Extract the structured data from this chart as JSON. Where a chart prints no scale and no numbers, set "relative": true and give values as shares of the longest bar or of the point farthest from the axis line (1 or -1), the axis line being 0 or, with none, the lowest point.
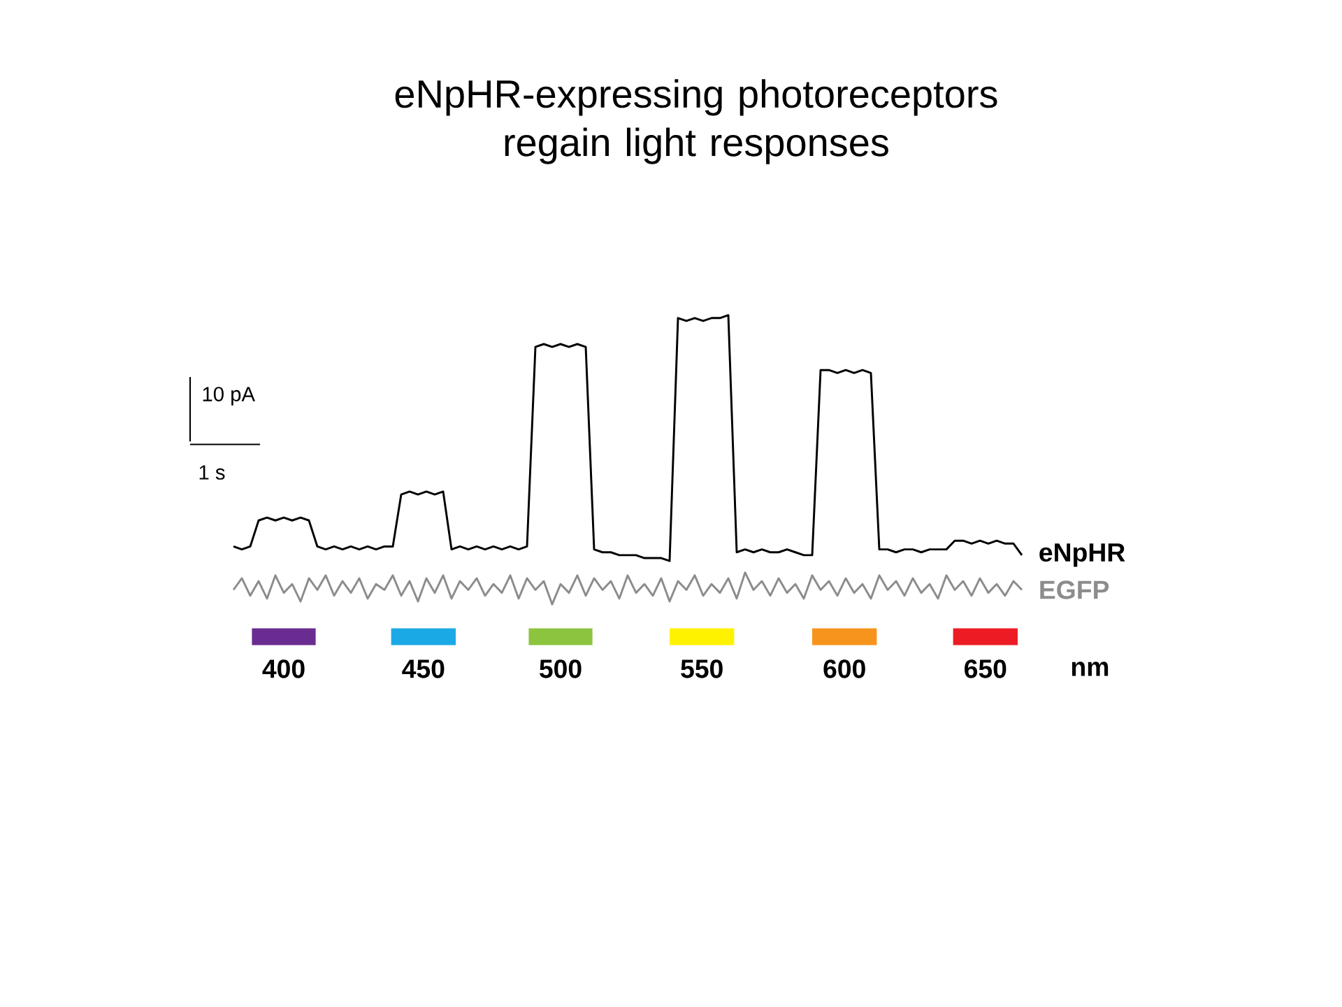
{
  "chart_data": {
    "type": "line",
    "title": "eNpHR-expressing photoreceptors regain light responses",
    "relative": true,
    "tick_labels": false,
    "categories": [
      null,
      null,
      null,
      null,
      null,
      null,
      null,
      null,
      null,
      null,
      null,
      null,
      null,
      null,
      null,
      null,
      null,
      null,
      null,
      null,
      null,
      null,
      null,
      null,
      null,
      null,
      null,
      null,
      null,
      null,
      null,
      null,
      null,
      null,
      null,
      null,
      null,
      null,
      null,
      null,
      null,
      null,
      null,
      null,
      null,
      null,
      null,
      null,
      null,
      null,
      null,
      null,
      null,
      null,
      null,
      null,
      null,
      null,
      null,
      null,
      null,
      null,
      null,
      null,
      null,
      null,
      null,
      null,
      null,
      null,
      null,
      null,
      null,
      null,
      null,
      null,
      null,
      null,
      null,
      null,
      null,
      null,
      null,
      null,
      null,
      null,
      null,
      null,
      null,
      null,
      null,
      null,
      null,
      null,
      null
    ],
    "series": [
      {
        "name": "eNpHR",
        "color": "#000000",
        "values": [
          0.2,
          0.19,
          0.2,
          0.29,
          0.3,
          0.29,
          0.3,
          0.29,
          0.3,
          0.29,
          0.2,
          0.19,
          0.2,
          0.19,
          0.2,
          0.19,
          0.2,
          0.19,
          0.2,
          0.2,
          0.38,
          0.39,
          0.38,
          0.39,
          0.38,
          0.39,
          0.19,
          0.2,
          0.19,
          0.2,
          0.19,
          0.2,
          0.19,
          0.2,
          0.19,
          0.2,
          0.89,
          0.9,
          0.89,
          0.9,
          0.89,
          0.9,
          0.89,
          0.19,
          0.18,
          0.18,
          0.17,
          0.17,
          0.17,
          0.16,
          0.16,
          0.16,
          0.15,
          0.99,
          0.98,
          0.99,
          0.98,
          0.99,
          0.99,
          1.0,
          0.18,
          0.19,
          0.18,
          0.19,
          0.18,
          0.18,
          0.19,
          0.18,
          0.17,
          0.17,
          0.81,
          0.81,
          0.8,
          0.81,
          0.8,
          0.81,
          0.8,
          0.19,
          0.19,
          0.18,
          0.19,
          0.19,
          0.18,
          0.19,
          0.19,
          0.19,
          0.22,
          0.22,
          0.21,
          0.22,
          0.21,
          0.22,
          0.21,
          0.21,
          0.17
        ]
      },
      {
        "name": "EGFP",
        "color": "#8c8c8c",
        "values": [
          0.05,
          0.09,
          0.03,
          0.08,
          0.02,
          0.1,
          0.04,
          0.07,
          0.01,
          0.09,
          0.05,
          0.1,
          0.03,
          0.08,
          0.04,
          0.09,
          0.02,
          0.07,
          0.05,
          0.1,
          0.03,
          0.08,
          0.01,
          0.09,
          0.04,
          0.1,
          0.02,
          0.08,
          0.05,
          0.09,
          0.03,
          0.07,
          0.04,
          0.1,
          0.02,
          0.09,
          0.05,
          0.08,
          0.0,
          0.07,
          0.04,
          0.1,
          0.03,
          0.09,
          0.05,
          0.08,
          0.02,
          0.1,
          0.04,
          0.07,
          0.03,
          0.09,
          0.01,
          0.08,
          0.05,
          0.1,
          0.03,
          0.07,
          0.04,
          0.09,
          0.02,
          0.11,
          0.05,
          0.08,
          0.03,
          0.09,
          0.04,
          0.07,
          0.02,
          0.1,
          0.05,
          0.08,
          0.03,
          0.09,
          0.04,
          0.07,
          0.02,
          0.1,
          0.05,
          0.08,
          0.03,
          0.09,
          0.04,
          0.07,
          0.02,
          0.1,
          0.05,
          0.08,
          0.03,
          0.09,
          0.04,
          0.07,
          0.03,
          0.08,
          0.05
        ]
      }
    ],
    "annotations": [
      "10 pA",
      "1 s",
      "400",
      "450",
      "500",
      "550",
      "600",
      "650",
      "nm"
    ]
  }
}
